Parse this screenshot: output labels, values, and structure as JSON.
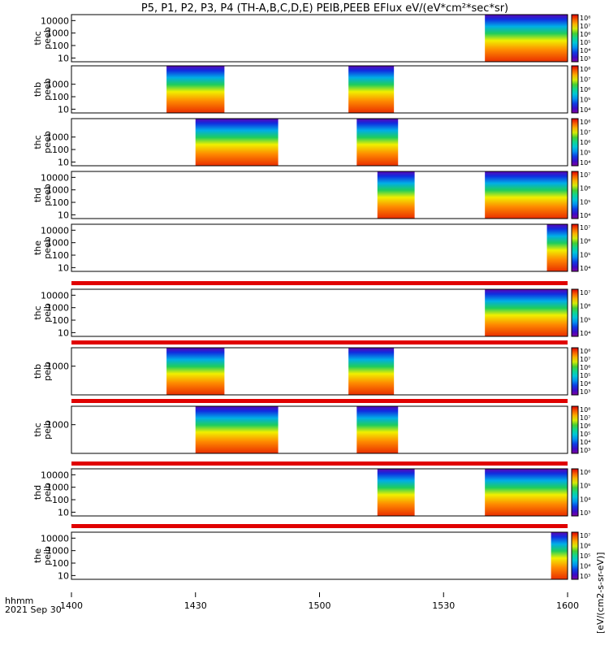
{
  "chart_data": {
    "type": "heatmap",
    "title": "P5, P1, P2, P3, P4 (TH-A,B,C,D,E) PEIB,PEEB EFlux eV/(eV*cm²*sec*sr)",
    "xlabel_lines": [
      "hhmm",
      "2021 Sep 30"
    ],
    "x_range": [
      "14:00",
      "16:00"
    ],
    "x_ticks": [
      "1400",
      "1430",
      "1500",
      "1530",
      "1600"
    ],
    "y_scale": "log",
    "colorbar_label": "[eV/(cm2-s-sr-eV)]",
    "colormap": "rainbow (purple-blue-cyan-green-yellow-red)",
    "panels": [
      {
        "label": [
          "thc",
          "peeb"
        ],
        "yticks": [
          "10",
          "100",
          "1000",
          "10000"
        ],
        "cbar_ticks": [
          "10³",
          "10⁴",
          "10⁵",
          "10⁶",
          "10⁷",
          "10⁸"
        ],
        "segments": [
          {
            "start": "15:40",
            "end": "16:00",
            "peak": "red at low energy"
          }
        ]
      },
      {
        "label": [
          "thb",
          "peeb"
        ],
        "yticks": [
          "10",
          "100",
          "1000"
        ],
        "cbar_ticks": [
          "10⁴",
          "10⁵",
          "10⁶",
          "10⁷",
          "10⁸"
        ],
        "segments": [
          {
            "start": "14:23",
            "end": "14:37"
          },
          {
            "start": "15:07",
            "end": "15:18"
          }
        ]
      },
      {
        "label": [
          "thc",
          "peeb"
        ],
        "yticks": [
          "10",
          "100",
          "1000"
        ],
        "cbar_ticks": [
          "10⁴",
          "10⁵",
          "10⁶",
          "10⁷",
          "10⁸"
        ],
        "segments": [
          {
            "start": "14:30",
            "end": "14:50"
          },
          {
            "start": "15:09",
            "end": "15:19"
          }
        ]
      },
      {
        "label": [
          "thd",
          "peeb"
        ],
        "yticks": [
          "10",
          "100",
          "1000",
          "10000"
        ],
        "cbar_ticks": [
          "10⁴",
          "10⁵",
          "10⁶",
          "10⁷"
        ],
        "segments": [
          {
            "start": "15:14",
            "end": "15:23"
          },
          {
            "start": "15:40",
            "end": "16:00"
          }
        ]
      },
      {
        "label": [
          "the",
          "peeb"
        ],
        "yticks": [
          "10",
          "100",
          "1000",
          "10000"
        ],
        "cbar_ticks": [
          "10⁴",
          "10⁵",
          "10⁶",
          "10⁷"
        ],
        "segments": [
          {
            "start": "15:55",
            "end": "16:00"
          }
        ]
      },
      {
        "label": [
          "thc",
          "peib"
        ],
        "yticks": [
          "10",
          "100",
          "1000",
          "10000"
        ],
        "cbar_ticks": [
          "10⁴",
          "10⁵",
          "10⁶",
          "10⁷"
        ],
        "segments": [
          {
            "start": "15:40",
            "end": "16:00"
          }
        ]
      },
      {
        "label": [
          "thb",
          "peib"
        ],
        "yticks": [
          "1000"
        ],
        "cbar_ticks": [
          "10³",
          "10⁴",
          "10⁵",
          "10⁶",
          "10⁷",
          "10⁸"
        ],
        "segments": [
          {
            "start": "14:23",
            "end": "14:37"
          },
          {
            "start": "15:07",
            "end": "15:18"
          }
        ]
      },
      {
        "label": [
          "thc",
          "peib"
        ],
        "yticks": [
          "1000"
        ],
        "cbar_ticks": [
          "10³",
          "10⁴",
          "10⁵",
          "10⁶",
          "10⁷",
          "10⁸"
        ],
        "segments": [
          {
            "start": "14:30",
            "end": "14:50"
          },
          {
            "start": "15:09",
            "end": "15:19"
          }
        ]
      },
      {
        "label": [
          "thd",
          "peib"
        ],
        "yticks": [
          "10",
          "100",
          "1000",
          "10000"
        ],
        "cbar_ticks": [
          "10³",
          "10⁴",
          "10⁵",
          "10⁶"
        ],
        "segments": [
          {
            "start": "15:14",
            "end": "15:23"
          },
          {
            "start": "15:40",
            "end": "16:00"
          }
        ]
      },
      {
        "label": [
          "the",
          "peib"
        ],
        "yticks": [
          "10",
          "100",
          "1000",
          "10000"
        ],
        "cbar_ticks": [
          "10³",
          "10⁴",
          "10⁵",
          "10⁶",
          "10⁷"
        ],
        "segments": [
          {
            "start": "15:56",
            "end": "16:00"
          }
        ]
      }
    ]
  }
}
